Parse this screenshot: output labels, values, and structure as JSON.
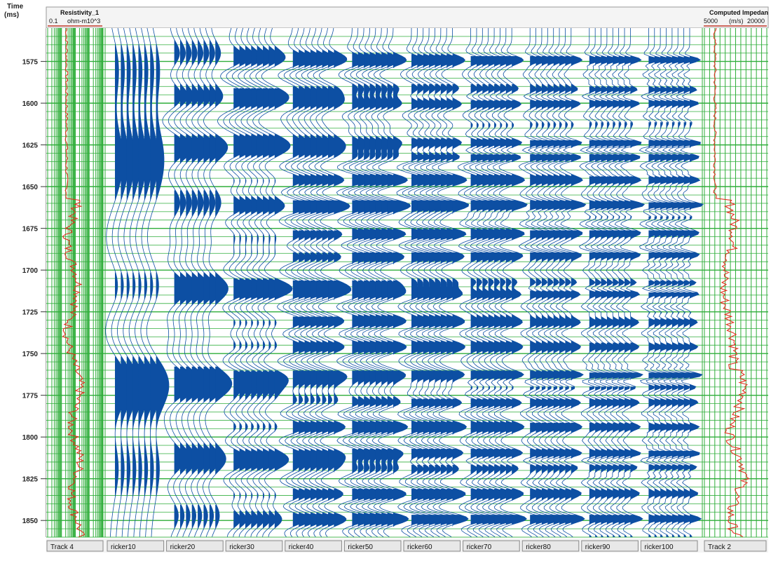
{
  "axis": {
    "title": "Time",
    "unit": "(ms)",
    "ticks": [
      1575,
      1600,
      1625,
      1650,
      1675,
      1700,
      1725,
      1750,
      1775,
      1800,
      1825,
      1850
    ]
  },
  "left_log": {
    "title": "Resistivity_1",
    "min_label": "0.1",
    "unit": "ohm-m",
    "max_label": "10^3",
    "track_label": "Track 4"
  },
  "right_log": {
    "title": "Computed Impedan",
    "min_label": "5000",
    "unit": "(m/s)",
    "max_label": "20000",
    "track_label": "Track 2"
  },
  "colors": {
    "grid": "#2fae3a",
    "trace": "#0d4fa3",
    "log": "#e0301e",
    "header_border": "#c0392b"
  },
  "chart_data": {
    "type": "line",
    "y_range_ms": [
      1555,
      1860
    ],
    "x_label_note": "",
    "traces": [
      {
        "name": "ricker10",
        "freq_hz": 10
      },
      {
        "name": "ricker20",
        "freq_hz": 20
      },
      {
        "name": "ricker30",
        "freq_hz": 30
      },
      {
        "name": "ricker40",
        "freq_hz": 40
      },
      {
        "name": "ricker50",
        "freq_hz": 50
      },
      {
        "name": "ricker60",
        "freq_hz": 60
      },
      {
        "name": "ricker70",
        "freq_hz": 70
      },
      {
        "name": "ricker80",
        "freq_hz": 80
      },
      {
        "name": "ricker90",
        "freq_hz": 90
      },
      {
        "name": "ricker100",
        "freq_hz": 100
      }
    ],
    "reflectors_ms": [
      {
        "t": 1574,
        "a": 0.8
      },
      {
        "t": 1583,
        "a": -0.45
      },
      {
        "t": 1592,
        "a": 0.55
      },
      {
        "t": 1600,
        "a": 0.7
      },
      {
        "t": 1608,
        "a": -0.4
      },
      {
        "t": 1624,
        "a": 0.9
      },
      {
        "t": 1632,
        "a": 0.65
      },
      {
        "t": 1638,
        "a": -0.5
      },
      {
        "t": 1646,
        "a": 0.75
      },
      {
        "t": 1654,
        "a": -0.4
      },
      {
        "t": 1661,
        "a": 1.0
      },
      {
        "t": 1672,
        "a": -0.55
      },
      {
        "t": 1678,
        "a": 0.6
      },
      {
        "t": 1686,
        "a": -0.5
      },
      {
        "t": 1691,
        "a": 0.55
      },
      {
        "t": 1700,
        "a": -0.45
      },
      {
        "t": 1708,
        "a": 0.6
      },
      {
        "t": 1714,
        "a": 0.8
      },
      {
        "t": 1722,
        "a": -0.55
      },
      {
        "t": 1731,
        "a": 0.55
      },
      {
        "t": 1738,
        "a": -0.5
      },
      {
        "t": 1746,
        "a": 0.6
      },
      {
        "t": 1754,
        "a": -0.45
      },
      {
        "t": 1763,
        "a": 1.0
      },
      {
        "t": 1770,
        "a": 0.55
      },
      {
        "t": 1779,
        "a": 0.6
      },
      {
        "t": 1786,
        "a": -0.5
      },
      {
        "t": 1794,
        "a": 0.7
      },
      {
        "t": 1802,
        "a": -0.45
      },
      {
        "t": 1810,
        "a": 0.8
      },
      {
        "t": 1818,
        "a": 0.55
      },
      {
        "t": 1827,
        "a": -0.5
      },
      {
        "t": 1834,
        "a": 0.6
      },
      {
        "t": 1842,
        "a": -0.45
      },
      {
        "t": 1849,
        "a": 0.8
      },
      {
        "t": 1856,
        "a": -0.4
      }
    ]
  }
}
